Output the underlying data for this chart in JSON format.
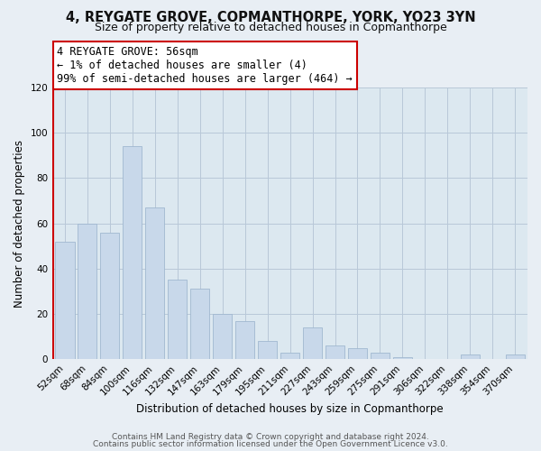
{
  "title": "4, REYGATE GROVE, COPMANTHORPE, YORK, YO23 3YN",
  "subtitle": "Size of property relative to detached houses in Copmanthorpe",
  "xlabel": "Distribution of detached houses by size in Copmanthorpe",
  "ylabel": "Number of detached properties",
  "categories": [
    "52sqm",
    "68sqm",
    "84sqm",
    "100sqm",
    "116sqm",
    "132sqm",
    "147sqm",
    "163sqm",
    "179sqm",
    "195sqm",
    "211sqm",
    "227sqm",
    "243sqm",
    "259sqm",
    "275sqm",
    "291sqm",
    "306sqm",
    "322sqm",
    "338sqm",
    "354sqm",
    "370sqm"
  ],
  "values": [
    52,
    60,
    56,
    94,
    67,
    35,
    31,
    20,
    17,
    8,
    3,
    14,
    6,
    5,
    3,
    1,
    0,
    0,
    2,
    0,
    2
  ],
  "bar_color": "#c8d8ea",
  "bar_edge_color": "#a0b8d0",
  "red_line_color": "#cc0000",
  "annotation_box_text_line1": "4 REYGATE GROVE: 56sqm",
  "annotation_box_text_line2": "← 1% of detached houses are smaller (4)",
  "annotation_box_text_line3": "99% of semi-detached houses are larger (464) →",
  "annotation_box_edge_color": "#cc0000",
  "annotation_box_facecolor": "#ffffff",
  "ylim": [
    0,
    120
  ],
  "yticks": [
    0,
    20,
    40,
    60,
    80,
    100,
    120
  ],
  "footer_line1": "Contains HM Land Registry data © Crown copyright and database right 2024.",
  "footer_line2": "Contains public sector information licensed under the Open Government Licence v3.0.",
  "background_color": "#e8eef4",
  "plot_background_color": "#dce8f0",
  "grid_color": "#b8c8d8",
  "title_fontsize": 10.5,
  "subtitle_fontsize": 9,
  "axis_label_fontsize": 8.5,
  "tick_fontsize": 7.5,
  "footer_fontsize": 6.5,
  "annotation_fontsize": 8.5
}
